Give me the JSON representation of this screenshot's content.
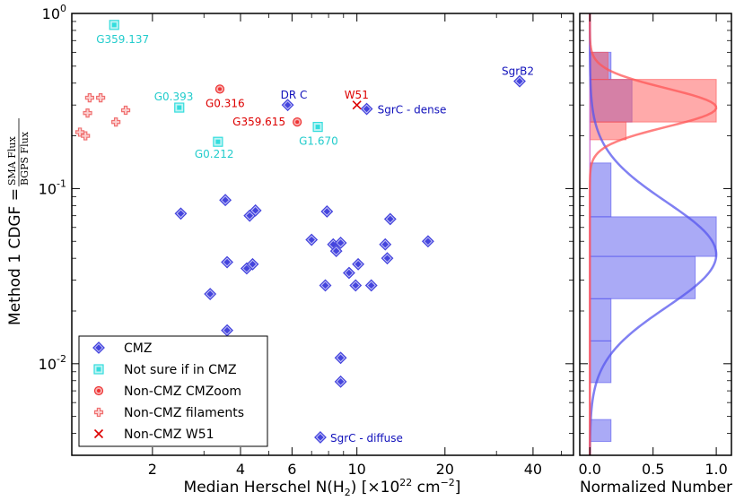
{
  "chart_data": [
    {
      "type": "scatter",
      "xlabel": "Median Herschel N(H",
      "xlabel_sub": "2",
      "xlabel_unit": ") [×10",
      "xlabel_exp": "22",
      "xlabel_unit2": " cm",
      "xlabel_exp2": "−2",
      "xlabel_end": "]",
      "ylabel_prefix": "Method 1 CDGF = ",
      "ylabel_num": "SMA Flux",
      "ylabel_den": "BGPS Flux",
      "xscale": "log",
      "yscale": "log",
      "xlim": [
        1.06,
        55
      ],
      "ylim": [
        0.003,
        1.0
      ],
      "xticks": [
        2,
        4,
        6,
        10,
        20,
        40
      ],
      "xtick_labels": [
        "2",
        "4",
        "6",
        "10",
        "20",
        "40"
      ],
      "yticks": [
        0.01,
        0.1,
        1.0
      ],
      "ytick_labels": [
        {
          "base": "10",
          "exp": "-2"
        },
        {
          "base": "10",
          "exp": "-1"
        },
        {
          "base": "10",
          "exp": "0"
        }
      ],
      "legend_position": "lower-left",
      "series": [
        {
          "name": "CMZ",
          "marker": "diamond",
          "color": "#4444dd",
          "points": [
            [
              2.5,
              0.072
            ],
            [
              3.15,
              0.025
            ],
            [
              3.55,
              0.086
            ],
            [
              3.6,
              0.038
            ],
            [
              3.6,
              0.0155
            ],
            [
              4.2,
              0.035
            ],
            [
              4.3,
              0.07
            ],
            [
              4.4,
              0.037
            ],
            [
              4.5,
              0.075
            ],
            [
              5.8,
              0.3
            ],
            [
              7.0,
              0.051
            ],
            [
              7.8,
              0.028
            ],
            [
              7.9,
              0.074
            ],
            [
              8.3,
              0.048
            ],
            [
              8.5,
              0.044
            ],
            [
              8.8,
              0.049
            ],
            [
              8.8,
              0.0108
            ],
            [
              8.8,
              0.0079
            ],
            [
              9.4,
              0.033
            ],
            [
              9.9,
              0.028
            ],
            [
              10.1,
              0.037
            ],
            [
              11.2,
              0.028
            ],
            [
              12.5,
              0.048
            ],
            [
              12.7,
              0.04
            ],
            [
              13.0,
              0.067
            ],
            [
              10.8,
              0.285
            ],
            [
              17.5,
              0.05
            ],
            [
              36,
              0.41
            ],
            [
              7.5,
              0.0038
            ]
          ]
        },
        {
          "name": "Not sure if in CMZ",
          "marker": "square",
          "color": "#33dddd",
          "points": [
            [
              1.48,
              0.86
            ],
            [
              2.47,
              0.29
            ],
            [
              3.35,
              0.185
            ],
            [
              7.35,
              0.225
            ]
          ]
        },
        {
          "name": "Non-CMZ CMZoom",
          "marker": "circle",
          "color": "#ee3333",
          "points": [
            [
              3.4,
              0.37
            ],
            [
              6.25,
              0.24
            ]
          ]
        },
        {
          "name": "Non-CMZ filaments",
          "marker": "plus",
          "color": "#f07070",
          "points": [
            [
              1.13,
              0.21
            ],
            [
              1.18,
              0.2
            ],
            [
              1.2,
              0.27
            ],
            [
              1.22,
              0.33
            ],
            [
              1.33,
              0.33
            ],
            [
              1.5,
              0.24
            ],
            [
              1.62,
              0.28
            ]
          ]
        },
        {
          "name": "Non-CMZ W51",
          "marker": "x",
          "color": "#dd0000",
          "points": [
            [
              10.0,
              0.3
            ]
          ]
        }
      ],
      "annotations": [
        {
          "text": "G359.137",
          "x": 1.48,
          "y": 0.86,
          "color": "#22cccc",
          "dx": -20,
          "dy": 20
        },
        {
          "text": "G0.393",
          "x": 2.47,
          "y": 0.29,
          "color": "#22cccc",
          "dx": -28,
          "dy": -8
        },
        {
          "text": "G0.316",
          "x": 3.4,
          "y": 0.37,
          "color": "#dd0000",
          "dx": -16,
          "dy": 20
        },
        {
          "text": "G359.615",
          "x": 6.25,
          "y": 0.24,
          "color": "#dd0000",
          "dx": -72,
          "dy": 4
        },
        {
          "text": "G0.212",
          "x": 3.35,
          "y": 0.185,
          "color": "#22cccc",
          "dx": -26,
          "dy": 18
        },
        {
          "text": "G1.670",
          "x": 7.35,
          "y": 0.225,
          "color": "#22cccc",
          "dx": -21,
          "dy": 20
        },
        {
          "text": "DR C",
          "x": 5.8,
          "y": 0.3,
          "color": "#1111bb",
          "dx": -8,
          "dy": -7
        },
        {
          "text": "W51",
          "x": 10.0,
          "y": 0.3,
          "color": "#dd0000",
          "dx": -14,
          "dy": -7
        },
        {
          "text": "SgrC - dense",
          "x": 10.8,
          "y": 0.285,
          "color": "#1111bb",
          "dx": 12,
          "dy": 5
        },
        {
          "text": "SgrB2",
          "x": 36,
          "y": 0.41,
          "color": "#1111bb",
          "dx": -20,
          "dy": -7
        },
        {
          "text": "SgrC - diffuse",
          "x": 7.5,
          "y": 0.0038,
          "color": "#1111bb",
          "dx": 11,
          "dy": 5
        }
      ]
    },
    {
      "type": "histogram",
      "orientation": "horizontal",
      "xlabel": "Normalized Number",
      "xlim": [
        -0.08,
        1.12
      ],
      "xticks": [
        0.0,
        0.5,
        1.0
      ],
      "xtick_labels": [
        "0.0",
        "0.5",
        "1.0"
      ],
      "shared_y": "log",
      "series": [
        {
          "name": "CMZ",
          "color": "#5555ee",
          "bins": [
            {
              "y0": 0.0036,
              "y1": 0.0048,
              "value": 0.167
            },
            {
              "y0": 0.0048,
              "y1": 0.0078,
              "value": 0.0
            },
            {
              "y0": 0.0078,
              "y1": 0.0135,
              "value": 0.167
            },
            {
              "y0": 0.0135,
              "y1": 0.0235,
              "value": 0.167
            },
            {
              "y0": 0.0235,
              "y1": 0.041,
              "value": 0.833
            },
            {
              "y0": 0.041,
              "y1": 0.069,
              "value": 1.0
            },
            {
              "y0": 0.069,
              "y1": 0.14,
              "value": 0.167
            },
            {
              "y0": 0.14,
              "y1": 0.24,
              "value": 0.0
            },
            {
              "y0": 0.24,
              "y1": 0.42,
              "value": 0.333
            },
            {
              "y0": 0.42,
              "y1": 0.6,
              "value": 0.167
            }
          ],
          "kde_peak_y": 0.042,
          "kde_sigma_dex": 0.3
        },
        {
          "name": "Non-CMZ",
          "color": "#ff5555",
          "bins": [
            {
              "y0": 0.19,
              "y1": 0.24,
              "value": 0.286
            },
            {
              "y0": 0.24,
              "y1": 0.42,
              "value": 1.0
            },
            {
              "y0": 0.42,
              "y1": 0.6,
              "value": 0.143
            }
          ],
          "kde_peak_y": 0.29,
          "kde_sigma_dex": 0.11
        }
      ]
    }
  ]
}
